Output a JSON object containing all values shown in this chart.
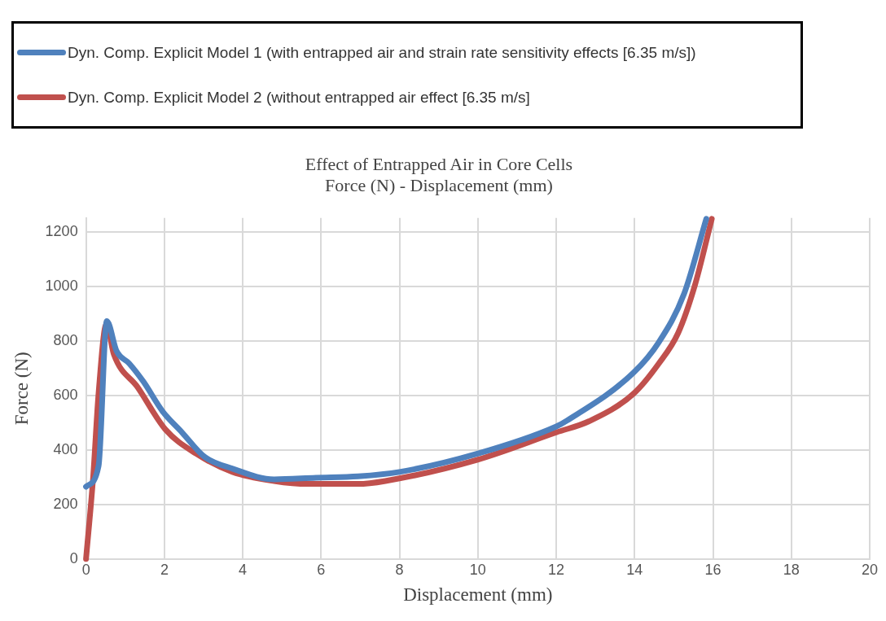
{
  "chart_data": {
    "type": "line",
    "title": "Effect of Entrapped Air in Core Cells",
    "subtitle": "Force (N) - Displacement (mm)",
    "xlabel": "Displacement (mm)",
    "ylabel": "Force (N)",
    "xlim": [
      0,
      20
    ],
    "xticks": [
      0,
      2,
      4,
      6,
      8,
      10,
      12,
      14,
      16,
      18,
      20
    ],
    "ylim": [
      0,
      1250
    ],
    "yticks": [
      0,
      200,
      400,
      600,
      800,
      1000,
      1200
    ],
    "grid": true,
    "legend": "top",
    "marker": "none",
    "line_style": "solid",
    "series": [
      {
        "name": "Dyn. Comp. Explicit Model 1 (with entrapped air and strain rate sensitivity effects [6.35 m/s])",
        "color": "#4f81bd",
        "x": [
          0,
          0.32,
          0.53,
          0.78,
          1.1,
          1.46,
          1.96,
          2.45,
          3.02,
          3.74,
          4.8,
          5.87,
          6.94,
          8.0,
          9.99,
          11.99,
          12.27,
          13.98,
          14.62,
          15.26,
          15.83
        ],
        "values": [
          265,
          341,
          872,
          762,
          717,
          651,
          540,
          464,
          375,
          331,
          292,
          298,
          303,
          319,
          386,
          485,
          507,
          684,
          795,
          971,
          1247
        ]
      },
      {
        "name": "Dyn. Comp. Explicit Model 2 (without entrapped air effect [6.35 m/s]",
        "color": "#c0504d",
        "x": [
          0,
          0.18,
          0.32,
          0.52,
          0.71,
          1.32,
          2.03,
          2.81,
          3.74,
          4.8,
          5.66,
          6.94,
          7.64,
          9.99,
          12.0,
          12.84,
          13.98,
          14.62,
          15.11,
          15.54,
          15.97
        ],
        "values": [
          0,
          297,
          607,
          861,
          750,
          629,
          474,
          386,
          319,
          286,
          275,
          275,
          286,
          364,
          464,
          505,
          607,
          717,
          828,
          1004,
          1247
        ]
      }
    ]
  }
}
